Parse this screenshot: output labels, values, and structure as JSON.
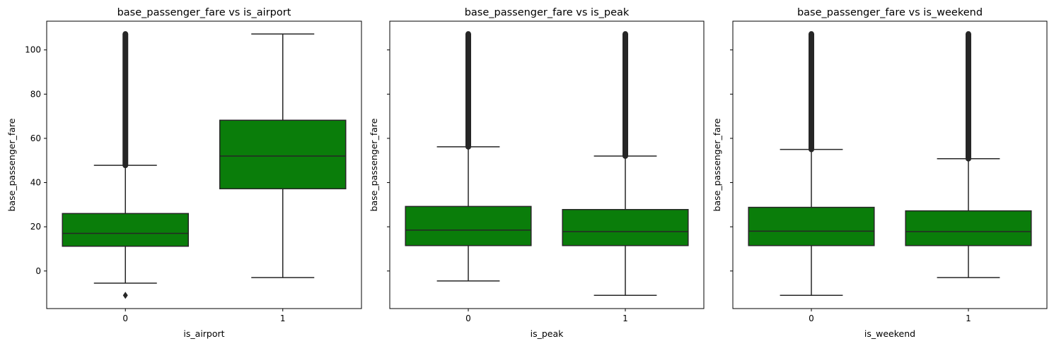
{
  "chart_data": [
    {
      "type": "box",
      "title": "base_passenger_fare vs is_airport",
      "xlabel": "is_airport",
      "ylabel": "base_passenger_fare",
      "categories": [
        "0",
        "1"
      ],
      "ylim": [
        -17,
        113
      ],
      "yticks": [
        "0",
        "20",
        "40",
        "60",
        "80",
        "100"
      ],
      "show_ytick_labels": true,
      "boxes": [
        {
          "category": "0",
          "whisker_low": -5.5,
          "q1": 11.2,
          "median": 17.0,
          "q3": 26.0,
          "whisker_high": 47.8,
          "outliers_low": [
            -11.0
          ],
          "outliers_high_range": [
            47.8,
            107.2
          ]
        },
        {
          "category": "1",
          "whisker_low": -3.0,
          "q1": 37.2,
          "median": 52.0,
          "q3": 68.2,
          "whisker_high": 107.2,
          "outliers_low": [],
          "outliers_high_range": null
        }
      ]
    },
    {
      "type": "box",
      "title": "base_passenger_fare vs is_peak",
      "xlabel": "is_peak",
      "ylabel": "base_passenger_fare",
      "categories": [
        "0",
        "1"
      ],
      "ylim": [
        -17,
        113
      ],
      "yticks": [
        "0",
        "20",
        "40",
        "60",
        "80",
        "100"
      ],
      "show_ytick_labels": false,
      "boxes": [
        {
          "category": "0",
          "whisker_low": -4.5,
          "q1": 11.5,
          "median": 18.5,
          "q3": 29.2,
          "whisker_high": 56.2,
          "outliers_low": [],
          "outliers_high_range": [
            56.2,
            107.2
          ]
        },
        {
          "category": "1",
          "whisker_low": -11.0,
          "q1": 11.5,
          "median": 17.8,
          "q3": 27.8,
          "whisker_high": 52.0,
          "outliers_low": [],
          "outliers_high_range": [
            52.0,
            107.2
          ]
        }
      ]
    },
    {
      "type": "box",
      "title": "base_passenger_fare vs is_weekend",
      "xlabel": "is_weekend",
      "ylabel": "base_passenger_fare",
      "categories": [
        "0",
        "1"
      ],
      "ylim": [
        -17,
        113
      ],
      "yticks": [
        "0",
        "20",
        "40",
        "60",
        "80",
        "100"
      ],
      "show_ytick_labels": false,
      "boxes": [
        {
          "category": "0",
          "whisker_low": -11.0,
          "q1": 11.5,
          "median": 18.0,
          "q3": 28.8,
          "whisker_high": 55.0,
          "outliers_low": [],
          "outliers_high_range": [
            55.0,
            107.2
          ]
        },
        {
          "category": "1",
          "whisker_low": -3.0,
          "q1": 11.5,
          "median": 17.8,
          "q3": 27.2,
          "whisker_high": 50.8,
          "outliers_low": [],
          "outliers_high_range": [
            50.8,
            107.2
          ]
        }
      ]
    }
  ],
  "colors": {
    "box_fill": "#0a7d0a",
    "line": "#262626",
    "outlier": "#262626"
  }
}
